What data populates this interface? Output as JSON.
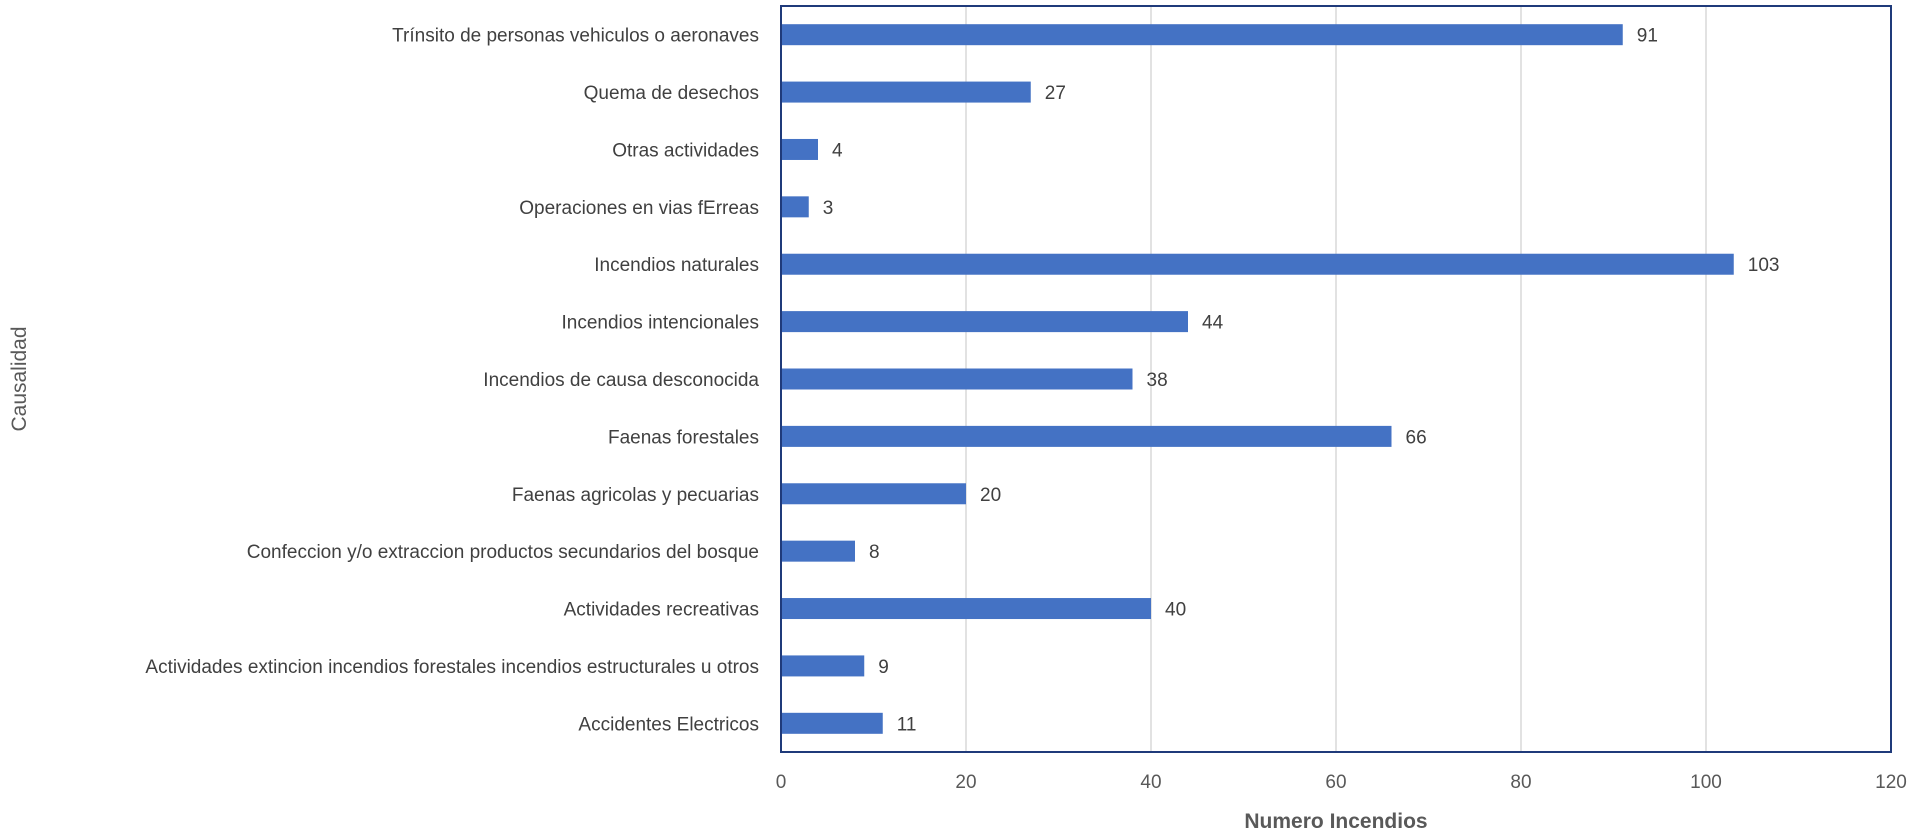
{
  "chart_data": {
    "type": "bar",
    "orientation": "horizontal",
    "xlabel": "Numero Incendios",
    "ylabel": "Causalidad",
    "xlim": [
      0,
      120
    ],
    "xticks": [
      0,
      20,
      40,
      60,
      80,
      100,
      120
    ],
    "grid": "vertical",
    "legend": "none",
    "colors": {
      "bar": "#4472C4",
      "grid": "#D9D9D9",
      "border": "#1F3A7A"
    },
    "categories": [
      "Trínsito de personas  vehiculos o aeronaves",
      "Quema de desechos",
      "Otras actividades",
      "Operaciones en vias fErreas",
      "Incendios naturales",
      "Incendios intencionales",
      "Incendios de causa desconocida",
      "Faenas forestales",
      "Faenas agricolas y pecuarias",
      "Confeccion y/o extraccion productos secundarios del bosque",
      "Actividades recreativas",
      "Actividades extincion incendios forestales   incendios estructurales u otros",
      "Accidentes Electricos"
    ],
    "values": [
      91,
      27,
      4,
      3,
      103,
      44,
      38,
      66,
      20,
      8,
      40,
      9,
      11
    ]
  }
}
